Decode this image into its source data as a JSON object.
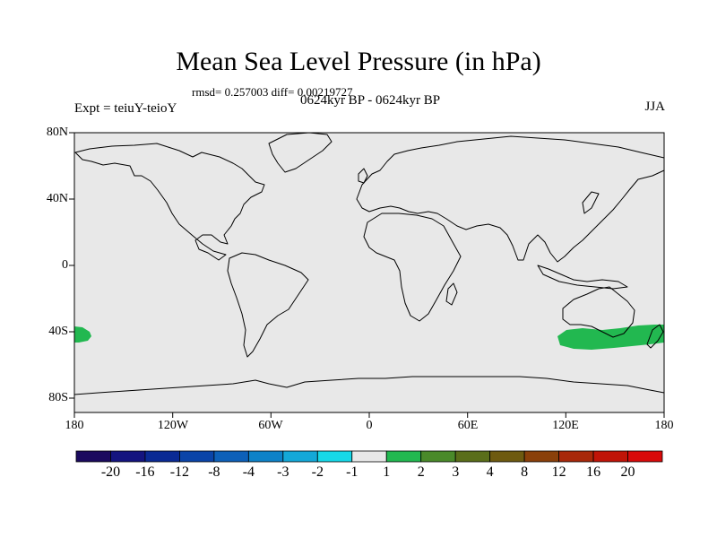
{
  "title": "Mean Sea Level Pressure (in hPa)",
  "stats": "rmsd= 0.257003 diff= 0.00219727",
  "left_subtitle": "Expt = teiuY-teioY",
  "center_subtitle": "0624kyr BP - 0624kyr BP",
  "right_subtitle": "JJA",
  "lat_labels": [
    "80N",
    "40N",
    "0",
    "40S",
    "80S"
  ],
  "lon_labels": [
    "180",
    "120W",
    "60W",
    "0",
    "60E",
    "120E",
    "180"
  ],
  "colorbar": {
    "labels": [
      "-20",
      "-16",
      "-12",
      "-8",
      "-4",
      "-3",
      "-2",
      "-1",
      "1",
      "2",
      "3",
      "4",
      "8",
      "12",
      "16",
      "20"
    ],
    "colors": [
      "#1b0a5e",
      "#14147f",
      "#0a2a94",
      "#0a44a8",
      "#0d60b8",
      "#0d82c8",
      "#14a8d8",
      "#16d8e8",
      "#e8e8e8",
      "#22b850",
      "#4a8a2a",
      "#5a6e1a",
      "#6e5a10",
      "#8a400a",
      "#a8280a",
      "#c01408",
      "#d80a0a"
    ]
  },
  "map": {
    "ocean_color": "#e8e8e8",
    "anomaly_color": "#22b850"
  }
}
